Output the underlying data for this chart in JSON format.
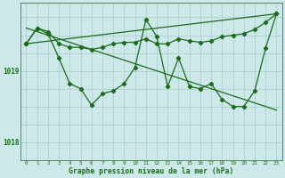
{
  "bg_color": "#cce8e8",
  "grid_color": "#aacccc",
  "line_color": "#1a6b1a",
  "ytick_labels": [
    "1018",
    "1019"
  ],
  "ytick_vals": [
    1018.0,
    1019.0
  ],
  "ylim": [
    1017.75,
    1019.95
  ],
  "xlim": [
    -0.5,
    23.5
  ],
  "xtick_vals": [
    0,
    1,
    2,
    3,
    4,
    5,
    6,
    7,
    8,
    9,
    10,
    11,
    12,
    13,
    14,
    15,
    16,
    17,
    18,
    19,
    20,
    21,
    22,
    23
  ],
  "xlabel": "Graphe pression niveau de la mer (hPa)",
  "series_flat": {
    "x": [
      0,
      1,
      2,
      3,
      4,
      5,
      6,
      7,
      8,
      9,
      10,
      11,
      12,
      13,
      14,
      15,
      16,
      17,
      18,
      19,
      20,
      21,
      22,
      23
    ],
    "y": [
      1019.38,
      1019.6,
      1019.55,
      1019.38,
      1019.33,
      1019.33,
      1019.3,
      1019.33,
      1019.38,
      1019.4,
      1019.4,
      1019.45,
      1019.38,
      1019.38,
      1019.45,
      1019.42,
      1019.4,
      1019.42,
      1019.48,
      1019.5,
      1019.52,
      1019.58,
      1019.68,
      1019.8
    ]
  },
  "series_jagged": {
    "x": [
      0,
      1,
      2,
      3,
      4,
      5,
      6,
      7,
      8,
      9,
      10,
      11,
      12,
      13,
      14,
      15,
      16,
      17,
      18,
      19,
      20,
      21,
      22,
      23
    ],
    "y": [
      1019.38,
      1019.6,
      1019.52,
      1019.18,
      1018.82,
      1018.75,
      1018.52,
      1018.68,
      1018.72,
      1018.82,
      1019.05,
      1019.72,
      1019.48,
      1018.78,
      1019.18,
      1018.78,
      1018.75,
      1018.82,
      1018.6,
      1018.5,
      1018.5,
      1018.72,
      1019.32,
      1019.8
    ]
  },
  "trend_down": {
    "x": [
      0,
      23
    ],
    "y": [
      1019.6,
      1018.45
    ]
  },
  "trend_up": {
    "x": [
      0,
      23
    ],
    "y": [
      1019.38,
      1019.8
    ]
  },
  "hgrid_vals": [
    1018.0,
    1018.25,
    1018.5,
    1018.75,
    1019.0,
    1019.25,
    1019.5,
    1019.75
  ]
}
